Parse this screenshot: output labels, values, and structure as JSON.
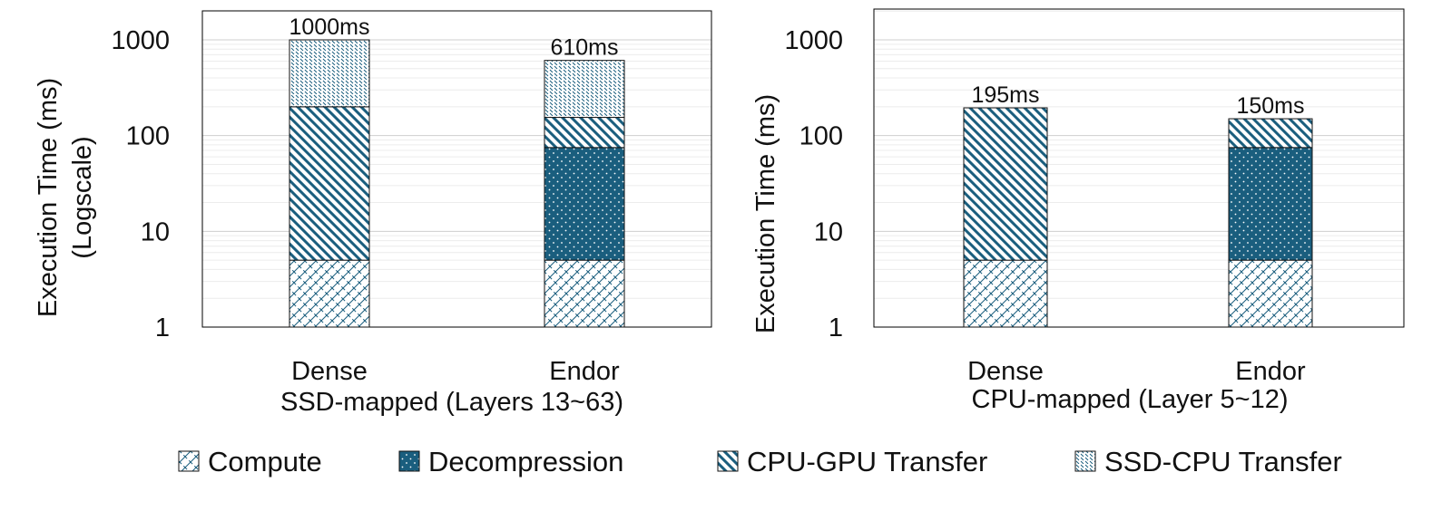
{
  "colors": {
    "primary": "#1a5e7e",
    "grid": "#dddddd",
    "axis": "#000000"
  },
  "legend": {
    "items": [
      {
        "name": "Compute",
        "pattern": "crosshatch-light"
      },
      {
        "name": "Decompression",
        "pattern": "dots-dark"
      },
      {
        "name": "CPU-GPU Transfer",
        "pattern": "diagonal-stripes"
      },
      {
        "name": "SSD-CPU Transfer",
        "pattern": "wavy-light"
      }
    ]
  },
  "chart_data": [
    {
      "type": "bar",
      "stacked": true,
      "yscale": "log",
      "ylabel": "Execution Time (ms)\n(Logscale)",
      "yticks": [
        1,
        10,
        100,
        1000
      ],
      "ylim": [
        1,
        2000
      ],
      "xlabel": "SSD-mapped (Layers 13~63)",
      "categories": [
        "Dense",
        "Endor"
      ],
      "totals_labels": [
        "1000ms",
        "610ms"
      ],
      "series": [
        {
          "name": "Compute",
          "values": [
            5,
            5
          ]
        },
        {
          "name": "Decompression",
          "values": [
            0,
            70
          ]
        },
        {
          "name": "CPU-GPU Transfer",
          "values": [
            195,
            80
          ]
        },
        {
          "name": "SSD-CPU Transfer",
          "values": [
            800,
            455
          ]
        }
      ]
    },
    {
      "type": "bar",
      "stacked": true,
      "yscale": "log",
      "ylabel": "Execution Time (ms)",
      "yticks": [
        1,
        10,
        100,
        1000
      ],
      "ylim": [
        1,
        2000
      ],
      "xlabel": "CPU-mapped (Layer 5~12)",
      "categories": [
        "Dense",
        "Endor"
      ],
      "totals_labels": [
        "195ms",
        "150ms"
      ],
      "series": [
        {
          "name": "Compute",
          "values": [
            5,
            5
          ]
        },
        {
          "name": "Decompression",
          "values": [
            0,
            70
          ]
        },
        {
          "name": "CPU-GPU Transfer",
          "values": [
            190,
            75
          ]
        },
        {
          "name": "SSD-CPU Transfer",
          "values": [
            0,
            0
          ]
        }
      ]
    }
  ]
}
